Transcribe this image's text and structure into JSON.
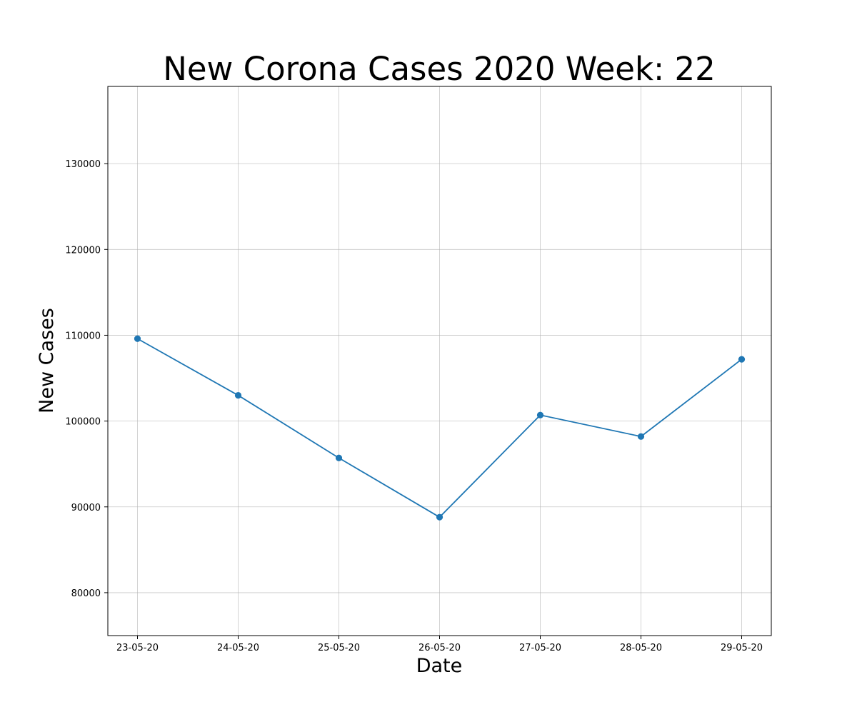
{
  "chart_data": {
    "type": "line",
    "title": "New Corona Cases 2020 Week: 22",
    "xlabel": "Date",
    "ylabel": "New Cases",
    "categories": [
      "23-05-20",
      "24-05-20",
      "25-05-20",
      "26-05-20",
      "27-05-20",
      "28-05-20",
      "29-05-20"
    ],
    "series": [
      {
        "values": [
          109600,
          103000,
          95700,
          88800,
          100700,
          98200,
          107200
        ]
      }
    ],
    "ylim": [
      75000,
      139000
    ],
    "yticks": [
      80000,
      90000,
      100000,
      110000,
      120000,
      130000
    ],
    "grid": true,
    "markers": true,
    "line_color": "#1f77b4"
  }
}
